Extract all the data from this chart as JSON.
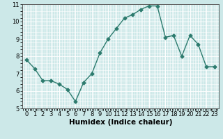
{
  "x": [
    0,
    1,
    2,
    3,
    4,
    5,
    6,
    7,
    8,
    9,
    10,
    11,
    12,
    13,
    14,
    15,
    16,
    17,
    18,
    19,
    20,
    21,
    22,
    23
  ],
  "y": [
    7.8,
    7.3,
    6.6,
    6.6,
    6.4,
    6.1,
    5.4,
    6.5,
    7.0,
    8.2,
    9.0,
    9.6,
    10.2,
    10.4,
    10.7,
    10.9,
    10.9,
    9.1,
    9.2,
    8.0,
    9.2,
    8.7,
    7.4,
    7.4
  ],
  "xlabel": "Humidex (Indice chaleur)",
  "ylim": [
    5,
    11
  ],
  "xlim": [
    -0.5,
    23.5
  ],
  "yticks": [
    5,
    6,
    7,
    8,
    9,
    10,
    11
  ],
  "xticks": [
    0,
    1,
    2,
    3,
    4,
    5,
    6,
    7,
    8,
    9,
    10,
    11,
    12,
    13,
    14,
    15,
    16,
    17,
    18,
    19,
    20,
    21,
    22,
    23
  ],
  "line_color": "#2d7b6e",
  "marker": "D",
  "marker_size": 2.5,
  "bg_color": "#cce8e8",
  "grid_color": "#ffffff",
  "tick_label_fontsize": 6,
  "xlabel_fontsize": 7.5
}
